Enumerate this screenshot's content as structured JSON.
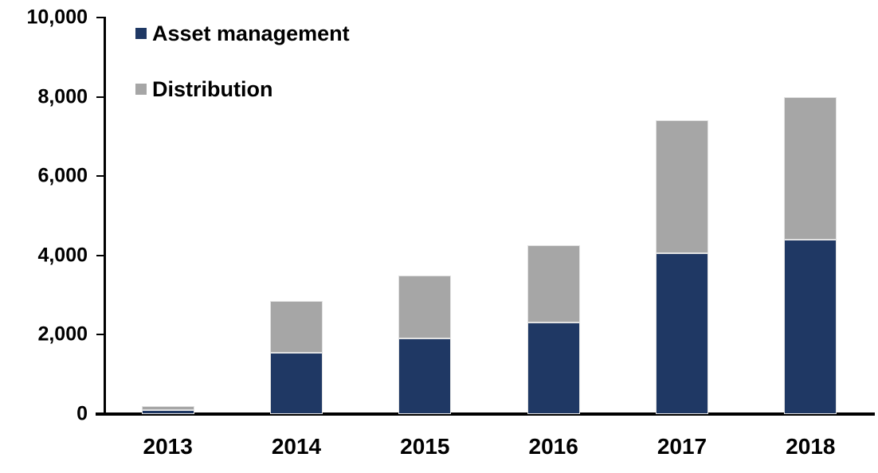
{
  "chart_data": {
    "type": "bar",
    "stacked": true,
    "title": "",
    "xlabel": "",
    "ylabel": "",
    "categories": [
      "2013",
      "2014",
      "2015",
      "2016",
      "2017",
      "2018"
    ],
    "series": [
      {
        "name": "Asset management",
        "color": "#1F3864",
        "values": [
          100,
          1550,
          1900,
          2300,
          4050,
          4400
        ]
      },
      {
        "name": "Distribution",
        "color": "#A6A6A6",
        "values": [
          100,
          1300,
          1600,
          1950,
          3350,
          3600
        ]
      }
    ],
    "totals": [
      200,
      2850,
      3500,
      4250,
      7400,
      8000
    ],
    "ylim": [
      0,
      10000
    ],
    "yticks": [
      0,
      2000,
      4000,
      6000,
      8000,
      10000
    ],
    "ytick_labels": [
      "0",
      "2,000",
      "4,000",
      "6,000",
      "8,000",
      "10,000"
    ],
    "grid": false,
    "legend_position": "inside-top-left",
    "axis_color": "#000000",
    "text_color": "#000000",
    "background_color": "#ffffff"
  }
}
